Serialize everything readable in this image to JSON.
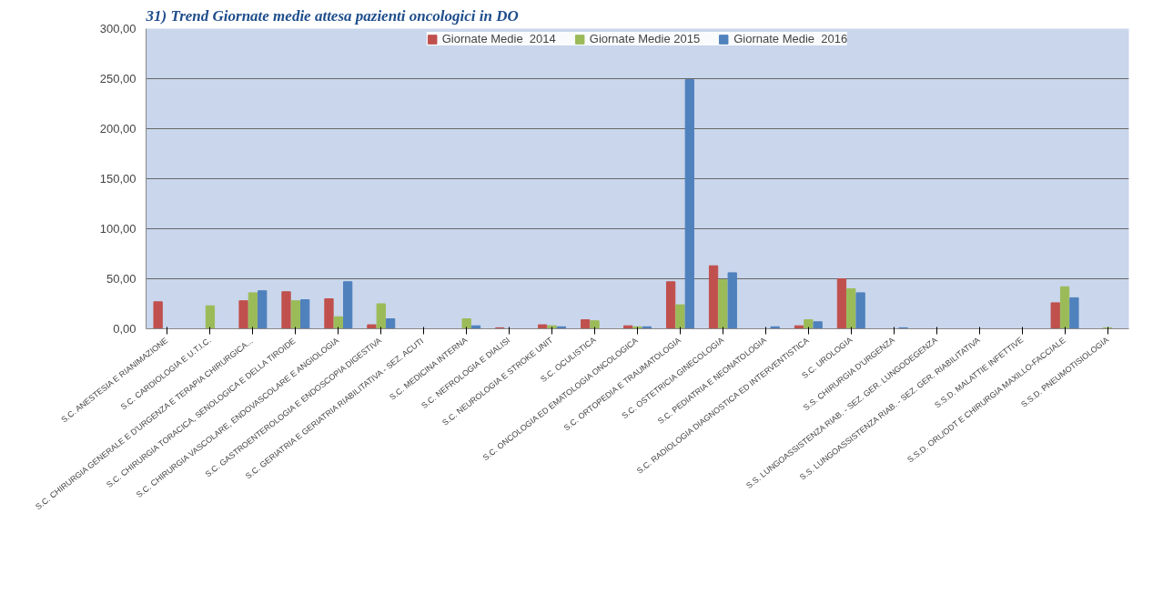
{
  "chart_data": {
    "type": "bar",
    "title": "31) Trend Giornate medie attesa pazienti oncologici in DO",
    "categories": [
      "S.C. ANESTESIA E RIANIMAZIONE",
      "S.C. CARDIOLOGIA E U.T.I.C.",
      "S.C. CHIRURGIA GENERALE E D'URGENZA E TERAPIA CHIRURGICA...",
      "S.C. CHIRURGIA TORACICA, SENOLOGICA E DELLA TIROIDE",
      "S.C. CHIRURGIA VASCOLARE, ENDOVASCOLARE E ANGIOLOGIA",
      "S.C. GASTROENTEROLOGIA E ENDOSCOPIA DIGESTIVA",
      "S.C. GERIATRIA E GERIATRIA RIABILITATIVA - SEZ. ACUTI",
      "S.C. MEDICINA INTERNA",
      "S.C. NEFROLOGIA E DIALISI",
      "S.C. NEUROLOGIA E STROKE UNIT",
      "S.C. OCULISTICA",
      "S.C. ONCOLOGIA ED EMATOLOGIA ONCOLOGICA",
      "S.C. ORTOPEDIA E TRAUMATOLOGIA",
      "S.C. OSTETRICIA GINECOLOGIA",
      "S.C. PEDIATRIA E NEONATOLOGIA",
      "S.C. RADIOLOGIA DIAGNOSTICA ED INTERVENTISTICA",
      "S.C. UROLOGIA",
      "S.S. CHIRURGIA D'URGENZA",
      "S.S. LUNGOASSISTENZA RIAB. - SEZ. GER. LUNGODEGENZA",
      "S.S. LUNGOASSISTENZA RIAB. - SEZ. GER. RIABILITATIVA",
      "S.S.D. MALATTIE INFETTIVE",
      "S.S.D. ORL/ODT E CHIRURGIA MAXILLO-FACCIALE",
      "S.S.D. PNEUMOTISIOLOGIA"
    ],
    "series": [
      {
        "name": "Giornate Medie  2014",
        "color": "#c0504d",
        "values": [
          27,
          null,
          28,
          37,
          30,
          4,
          0,
          null,
          1,
          4,
          9,
          3,
          47,
          63,
          null,
          3,
          50,
          null,
          null,
          null,
          null,
          26,
          null
        ]
      },
      {
        "name": "Giornate Medie 2015",
        "color": "#9bbb59",
        "values": [
          null,
          23,
          36,
          28,
          12,
          25,
          0,
          10,
          null,
          3,
          8,
          2,
          24,
          49,
          null,
          9,
          40,
          null,
          null,
          null,
          null,
          42,
          1
        ]
      },
      {
        "name": "Giornate Medie  2016",
        "color": "#4f81bd",
        "values": [
          null,
          null,
          38,
          29,
          47,
          10,
          0,
          3,
          null,
          2,
          null,
          2,
          249,
          56,
          2,
          7,
          36,
          1,
          null,
          null,
          null,
          31,
          null
        ]
      }
    ],
    "ylim": [
      0,
      300
    ],
    "yticks": [
      {
        "value": 0,
        "label": "0,00"
      },
      {
        "value": 50,
        "label": "50,00"
      },
      {
        "value": 100,
        "label": "100,00"
      },
      {
        "value": 150,
        "label": "150,00"
      },
      {
        "value": 200,
        "label": "200,00"
      },
      {
        "value": 250,
        "label": "250,00"
      },
      {
        "value": 300,
        "label": "300,00"
      }
    ],
    "grid": "y",
    "legend": "top"
  }
}
